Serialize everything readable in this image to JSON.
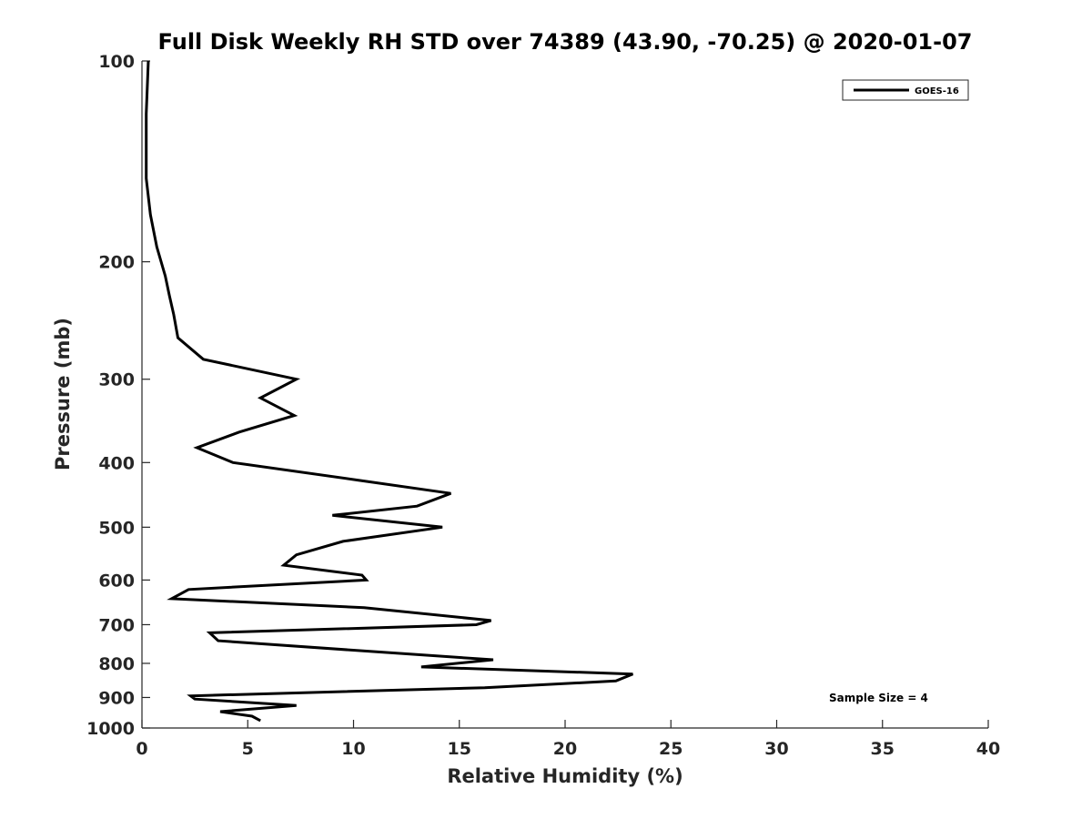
{
  "chart_data": {
    "type": "line",
    "title": "Full Disk Weekly RH STD over 74389 (43.90, -70.25) @ 2020-01-07",
    "xlabel": "Relative Humidity (%)",
    "ylabel": "Pressure (mb)",
    "xlim": [
      0,
      40
    ],
    "ylim": [
      1000,
      100
    ],
    "yscale": "log",
    "y_inverted": true,
    "grid": false,
    "legend_position": "top-right",
    "x_ticks": [
      "0",
      "5",
      "10",
      "15",
      "20",
      "25",
      "30",
      "35",
      "40"
    ],
    "y_ticks": [
      "100",
      "200",
      "300",
      "400",
      "500",
      "600",
      "700",
      "800",
      "900",
      "1000"
    ],
    "annotation": "Sample Size = 4",
    "series": [
      {
        "name": "GOES-16",
        "color": "#000000",
        "points": [
          [
            0.3,
            100
          ],
          [
            0.25,
            110
          ],
          [
            0.2,
            120
          ],
          [
            0.2,
            135
          ],
          [
            0.2,
            150
          ],
          [
            0.4,
            170
          ],
          [
            0.7,
            190
          ],
          [
            1.1,
            210
          ],
          [
            1.3,
            225
          ],
          [
            1.5,
            240
          ],
          [
            1.7,
            260
          ],
          [
            2.9,
            280
          ],
          [
            7.3,
            300
          ],
          [
            5.6,
            320
          ],
          [
            7.2,
            340
          ],
          [
            4.6,
            360
          ],
          [
            2.6,
            380
          ],
          [
            4.3,
            400
          ],
          [
            10.2,
            425
          ],
          [
            14.6,
            445
          ],
          [
            13.0,
            465
          ],
          [
            9.0,
            480
          ],
          [
            14.2,
            500
          ],
          [
            9.5,
            525
          ],
          [
            7.3,
            550
          ],
          [
            6.7,
            570
          ],
          [
            10.4,
            590
          ],
          [
            10.6,
            600
          ],
          [
            2.2,
            620
          ],
          [
            1.4,
            640
          ],
          [
            10.5,
            660
          ],
          [
            16.5,
            690
          ],
          [
            15.8,
            700
          ],
          [
            3.2,
            720
          ],
          [
            3.6,
            740
          ],
          [
            11.4,
            770
          ],
          [
            16.6,
            790
          ],
          [
            13.2,
            810
          ],
          [
            23.2,
            830
          ],
          [
            22.4,
            850
          ],
          [
            16.2,
            870
          ],
          [
            2.3,
            895
          ],
          [
            2.5,
            905
          ],
          [
            7.3,
            925
          ],
          [
            3.7,
            945
          ],
          [
            5.2,
            960
          ],
          [
            5.6,
            975
          ]
        ]
      }
    ]
  }
}
